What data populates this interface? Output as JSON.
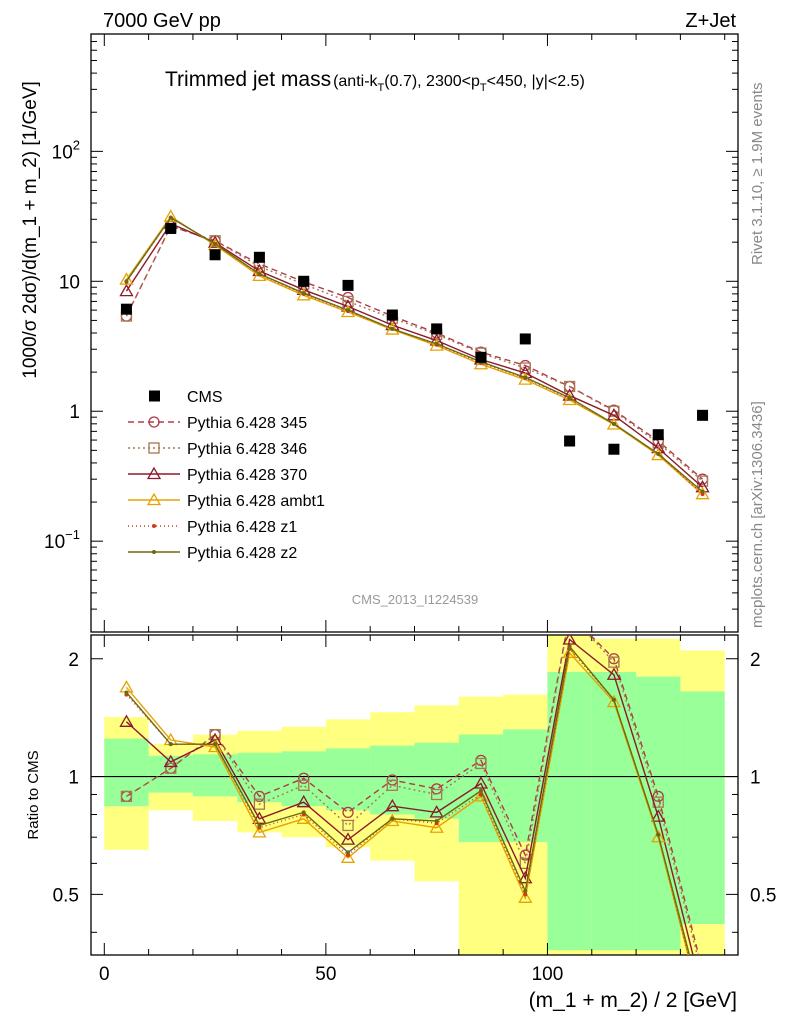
{
  "header": {
    "left": "7000 GeV pp",
    "right": "Z+Jet"
  },
  "title": {
    "main": "Trimmed jet mass",
    "sub_pre": "(anti-k",
    "sub_sub1": "T",
    "sub_mid": "(0.7), 2300<p",
    "sub_sub2": "T",
    "sub_post": "<450, |y|<2.5)"
  },
  "side_labels": {
    "rivet": "Rivet 3.1.10, ≥ 1.9M events",
    "mcplots": "mcplots.cern.ch [arXiv:1306.3436]"
  },
  "watermark": "CMS_2013_I1224539",
  "chart_data": {
    "type": "line",
    "x": [
      5,
      15,
      25,
      35,
      45,
      55,
      65,
      75,
      85,
      95,
      105,
      115,
      125,
      135
    ],
    "bin_edges": [
      0,
      10,
      20,
      30,
      40,
      50,
      60,
      70,
      80,
      90,
      100,
      110,
      120,
      130,
      140
    ],
    "xlabel": "(m_1 + m_2) / 2 [GeV]",
    "ylabel": "1000/σ 2dσ)/d(m_1 + m_2) [1/GeV]",
    "ratio_ylabel": "Ratio to CMS",
    "xlim": [
      -3,
      143
    ],
    "ylim": [
      0.02,
      800
    ],
    "ratio_ylim": [
      0.35,
      2.3
    ],
    "yscale": "log",
    "x_ticks": [
      "0",
      "50",
      "100"
    ],
    "y_ticks": [
      "10^-1",
      "1",
      "10",
      "10^2"
    ],
    "ratio_ticks": [
      "0.5",
      "1",
      "2"
    ],
    "legend_position": "left-middle",
    "reference": {
      "name": "CMS",
      "values": [
        6.1,
        25.5,
        16.0,
        15.3,
        10.0,
        9.3,
        5.5,
        4.3,
        2.6,
        3.6,
        0.59,
        0.51,
        0.66,
        0.93
      ],
      "ratio_band_inner": [
        [
          0.84,
          1.25
        ],
        [
          0.91,
          1.13
        ],
        [
          0.89,
          1.14
        ],
        [
          0.86,
          1.15
        ],
        [
          0.84,
          1.16
        ],
        [
          0.82,
          1.18
        ],
        [
          0.8,
          1.2
        ],
        [
          0.78,
          1.22
        ],
        [
          0.68,
          1.28
        ],
        [
          0.68,
          1.32
        ],
        [
          0.36,
          1.85
        ],
        [
          0.36,
          1.85
        ],
        [
          0.36,
          1.8
        ],
        [
          0.42,
          1.65
        ]
      ],
      "ratio_band_outer": [
        [
          0.65,
          1.42
        ],
        [
          0.82,
          1.21
        ],
        [
          0.77,
          1.28
        ],
        [
          0.72,
          1.31
        ],
        [
          0.7,
          1.34
        ],
        [
          0.66,
          1.4
        ],
        [
          0.61,
          1.46
        ],
        [
          0.54,
          1.52
        ],
        [
          0.35,
          1.6
        ],
        [
          0.35,
          1.62
        ],
        [
          0.35,
          2.3
        ],
        [
          0.35,
          2.25
        ],
        [
          0.35,
          2.25
        ],
        [
          0.35,
          2.1
        ]
      ]
    },
    "series": [
      {
        "name": "Pythia 6.428 345",
        "color": "#b03a48",
        "dash": "6,4",
        "marker": "circle",
        "values": [
          5.4,
          26.5,
          20.5,
          13.6,
          9.9,
          7.5,
          5.4,
          4.0,
          2.85,
          2.25,
          1.55,
          1.02,
          0.59,
          0.3
        ],
        "ratio": [
          0.89,
          1.05,
          1.28,
          0.89,
          0.99,
          0.81,
          0.98,
          0.93,
          1.1,
          0.63,
          2.6,
          2.0,
          0.89,
          0.32
        ]
      },
      {
        "name": "Pythia 6.428 346",
        "color": "#a57a52",
        "dash": "2,3",
        "marker": "square",
        "values": [
          5.4,
          26.5,
          20.5,
          13.0,
          9.5,
          7.0,
          5.2,
          3.9,
          2.8,
          2.15,
          1.55,
          1.0,
          0.57,
          0.29
        ],
        "ratio": [
          0.89,
          1.05,
          1.28,
          0.85,
          0.95,
          0.75,
          0.95,
          0.9,
          1.08,
          0.6,
          2.6,
          1.96,
          0.86,
          0.31
        ]
      },
      {
        "name": "Pythia 6.428 370",
        "color": "#8b1a2b",
        "dash": "",
        "marker": "triangle",
        "values": [
          8.4,
          27.8,
          19.8,
          12.0,
          8.6,
          6.4,
          4.6,
          3.5,
          2.5,
          1.97,
          1.32,
          0.93,
          0.52,
          0.26
        ],
        "ratio": [
          1.38,
          1.09,
          1.24,
          0.78,
          0.86,
          0.69,
          0.84,
          0.81,
          0.96,
          0.55,
          2.24,
          1.82,
          0.79,
          0.28
        ]
      },
      {
        "name": "Pythia 6.428 ambt1",
        "color": "#e8a200",
        "dash": "",
        "marker": "triangle",
        "values": [
          10.3,
          31.5,
          19.0,
          11.0,
          7.8,
          5.8,
          4.25,
          3.2,
          2.3,
          1.75,
          1.22,
          0.79,
          0.46,
          0.23
        ],
        "ratio": [
          1.69,
          1.24,
          1.19,
          0.72,
          0.78,
          0.62,
          0.77,
          0.74,
          0.89,
          0.49,
          2.07,
          1.55,
          0.7,
          0.25
        ]
      },
      {
        "name": "Pythia 6.428 z1",
        "color": "#d43a1a",
        "dash": "1,3",
        "marker": "dot",
        "values": [
          9.9,
          30.9,
          19.4,
          11.3,
          8.0,
          5.9,
          4.3,
          3.25,
          2.35,
          1.8,
          1.25,
          0.8,
          0.47,
          0.23
        ],
        "ratio": [
          1.62,
          1.21,
          1.21,
          0.74,
          0.8,
          0.63,
          0.78,
          0.76,
          0.9,
          0.5,
          2.12,
          1.57,
          0.71,
          0.25
        ]
      },
      {
        "name": "Pythia 6.428 z2",
        "color": "#6b6b12",
        "dash": "",
        "marker": "dot",
        "values": [
          10.0,
          30.9,
          19.4,
          11.4,
          8.1,
          6.0,
          4.3,
          3.3,
          2.4,
          1.82,
          1.27,
          0.8,
          0.47,
          0.24
        ],
        "ratio": [
          1.64,
          1.21,
          1.21,
          0.75,
          0.81,
          0.64,
          0.78,
          0.77,
          0.92,
          0.51,
          2.15,
          1.57,
          0.71,
          0.26
        ]
      }
    ]
  }
}
